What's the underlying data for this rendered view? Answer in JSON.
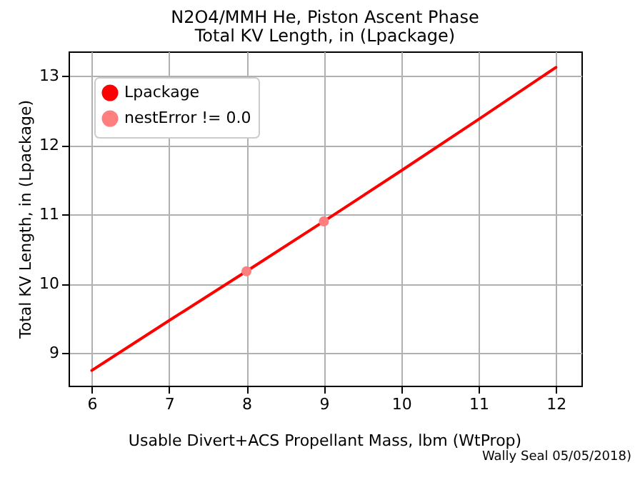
{
  "chart_data": {
    "type": "line",
    "title": "N2O4/MMH He, Piston Ascent Phase",
    "subtitle": "Total KV Length, in (Lpackage)",
    "xlabel": "Usable Divert+ACS Propellant Mass, lbm (WtProp)",
    "ylabel": "Total KV Length, in (Lpackage)",
    "series": [
      {
        "name": "Lpackage",
        "type": "line",
        "color": "#ff0000",
        "x": [
          6,
          7,
          8,
          9,
          10,
          11,
          12
        ],
        "values": [
          8.75,
          9.47,
          10.18,
          10.9,
          11.63,
          12.37,
          13.12
        ]
      },
      {
        "name": "nestError != 0.0",
        "type": "scatter",
        "color": "#ff7f7f",
        "x": [
          8,
          9
        ],
        "values": [
          10.18,
          10.9
        ]
      }
    ],
    "xlim": [
      5.7,
      12.33
    ],
    "xticks": [
      6,
      7,
      8,
      9,
      10,
      11,
      12
    ],
    "ylim": [
      8.53,
      13.35
    ],
    "yticks": [
      9,
      10,
      11,
      12,
      13
    ],
    "grid": true,
    "legend": "top left",
    "annotations": [
      "Wally Seal 05/05/2018)"
    ]
  }
}
